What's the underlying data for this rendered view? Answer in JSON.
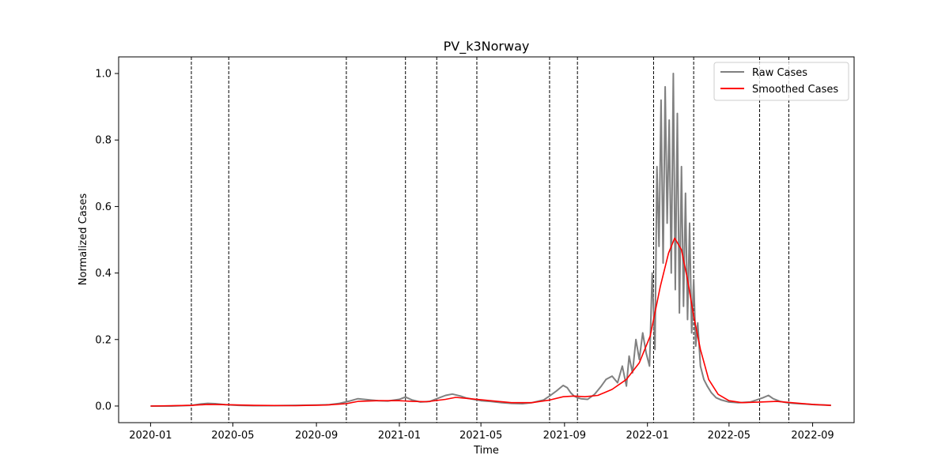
{
  "chart_data": {
    "type": "line",
    "title": "PV_k3Norway",
    "xlabel": "Time",
    "ylabel": "Normalized Cases",
    "xlim": [
      "2019-11-15",
      "2022-11-01"
    ],
    "ylim": [
      -0.05,
      1.05
    ],
    "x_ticks": [
      "2020-01",
      "2020-05",
      "2020-09",
      "2021-01",
      "2021-05",
      "2021-09",
      "2022-01",
      "2022-05",
      "2022-09"
    ],
    "y_ticks": [
      "0.0",
      "0.2",
      "0.4",
      "0.6",
      "0.8",
      "1.0"
    ],
    "grid": false,
    "legend": {
      "placement": "top-right",
      "entries": [
        "Raw Cases",
        "Smoothed Cases"
      ]
    },
    "colors": {
      "raw": "#808080",
      "smoothed": "#ff0000",
      "vlines": "#000000"
    },
    "vertical_lines": [
      "2020-03-01",
      "2020-04-25",
      "2020-10-15",
      "2021-01-10",
      "2021-02-25",
      "2021-04-25",
      "2021-08-10",
      "2021-09-20",
      "2022-01-10",
      "2022-03-10",
      "2022-06-15",
      "2022-07-28"
    ],
    "series": [
      {
        "name": "Raw Cases",
        "x": [
          "2020-01-01",
          "2020-02-01",
          "2020-03-01",
          "2020-03-15",
          "2020-03-25",
          "2020-04-05",
          "2020-04-20",
          "2020-05-10",
          "2020-06-01",
          "2020-07-01",
          "2020-08-01",
          "2020-09-01",
          "2020-09-20",
          "2020-10-05",
          "2020-10-20",
          "2020-11-01",
          "2020-11-10",
          "2020-11-20",
          "2020-12-01",
          "2020-12-15",
          "2021-01-01",
          "2021-01-10",
          "2021-01-20",
          "2021-02-01",
          "2021-02-15",
          "2021-02-25",
          "2021-03-10",
          "2021-03-20",
          "2021-04-01",
          "2021-04-10",
          "2021-04-20",
          "2021-05-01",
          "2021-05-15",
          "2021-06-01",
          "2021-06-15",
          "2021-07-01",
          "2021-07-15",
          "2021-08-01",
          "2021-08-10",
          "2021-08-20",
          "2021-08-30",
          "2021-09-05",
          "2021-09-10",
          "2021-09-15",
          "2021-09-20",
          "2021-09-25",
          "2021-10-05",
          "2021-10-15",
          "2021-10-25",
          "2021-11-01",
          "2021-11-10",
          "2021-11-18",
          "2021-11-25",
          "2021-12-01",
          "2021-12-05",
          "2021-12-10",
          "2021-12-15",
          "2021-12-20",
          "2021-12-25",
          "2021-12-30",
          "2022-01-04",
          "2022-01-08",
          "2022-01-12",
          "2022-01-15",
          "2022-01-18",
          "2022-01-21",
          "2022-01-24",
          "2022-01-27",
          "2022-01-30",
          "2022-02-02",
          "2022-02-05",
          "2022-02-08",
          "2022-02-11",
          "2022-02-14",
          "2022-02-17",
          "2022-02-20",
          "2022-02-23",
          "2022-02-26",
          "2022-03-01",
          "2022-03-04",
          "2022-03-07",
          "2022-03-10",
          "2022-03-13",
          "2022-03-16",
          "2022-03-20",
          "2022-03-25",
          "2022-03-30",
          "2022-04-05",
          "2022-04-12",
          "2022-04-20",
          "2022-05-01",
          "2022-05-15",
          "2022-06-01",
          "2022-06-10",
          "2022-06-20",
          "2022-06-28",
          "2022-07-05",
          "2022-07-15",
          "2022-07-25",
          "2022-08-05",
          "2022-08-20",
          "2022-09-05",
          "2022-09-20",
          "2022-09-28"
        ],
        "y": [
          0.0,
          0.0,
          0.002,
          0.006,
          0.008,
          0.007,
          0.004,
          0.002,
          0.001,
          0.001,
          0.002,
          0.003,
          0.004,
          0.008,
          0.015,
          0.022,
          0.02,
          0.018,
          0.016,
          0.015,
          0.02,
          0.027,
          0.018,
          0.012,
          0.014,
          0.022,
          0.032,
          0.036,
          0.03,
          0.024,
          0.02,
          0.016,
          0.014,
          0.01,
          0.008,
          0.007,
          0.01,
          0.018,
          0.03,
          0.045,
          0.062,
          0.055,
          0.04,
          0.03,
          0.025,
          0.022,
          0.02,
          0.035,
          0.06,
          0.08,
          0.09,
          0.07,
          0.12,
          0.06,
          0.15,
          0.1,
          0.2,
          0.14,
          0.22,
          0.16,
          0.12,
          0.4,
          0.17,
          0.72,
          0.48,
          0.92,
          0.43,
          0.96,
          0.55,
          0.86,
          0.4,
          1.0,
          0.35,
          0.88,
          0.28,
          0.72,
          0.3,
          0.64,
          0.26,
          0.55,
          0.22,
          0.38,
          0.18,
          0.25,
          0.12,
          0.08,
          0.06,
          0.04,
          0.025,
          0.018,
          0.012,
          0.01,
          0.012,
          0.018,
          0.025,
          0.032,
          0.022,
          0.014,
          0.01,
          0.008,
          0.006,
          0.004,
          0.003,
          0.002
        ]
      },
      {
        "name": "Smoothed Cases",
        "x": [
          "2020-01-01",
          "2020-03-01",
          "2020-03-25",
          "2020-04-25",
          "2020-06-01",
          "2020-08-01",
          "2020-09-15",
          "2020-10-15",
          "2020-11-01",
          "2020-12-01",
          "2021-01-01",
          "2021-01-20",
          "2021-02-10",
          "2021-03-10",
          "2021-03-25",
          "2021-04-15",
          "2021-05-15",
          "2021-06-15",
          "2021-07-15",
          "2021-08-10",
          "2021-08-30",
          "2021-09-15",
          "2021-10-01",
          "2021-10-20",
          "2021-11-10",
          "2021-12-01",
          "2021-12-20",
          "2022-01-05",
          "2022-01-20",
          "2022-02-01",
          "2022-02-10",
          "2022-02-20",
          "2022-03-01",
          "2022-03-10",
          "2022-03-20",
          "2022-04-01",
          "2022-04-15",
          "2022-05-01",
          "2022-05-20",
          "2022-06-15",
          "2022-07-10",
          "2022-08-01",
          "2022-09-01",
          "2022-09-28"
        ],
        "y": [
          0.0,
          0.002,
          0.005,
          0.004,
          0.002,
          0.001,
          0.003,
          0.007,
          0.014,
          0.016,
          0.016,
          0.014,
          0.013,
          0.02,
          0.026,
          0.022,
          0.016,
          0.01,
          0.01,
          0.018,
          0.028,
          0.03,
          0.028,
          0.032,
          0.05,
          0.08,
          0.13,
          0.21,
          0.36,
          0.46,
          0.505,
          0.47,
          0.38,
          0.27,
          0.17,
          0.08,
          0.035,
          0.016,
          0.01,
          0.012,
          0.014,
          0.01,
          0.005,
          0.002
        ]
      }
    ]
  }
}
